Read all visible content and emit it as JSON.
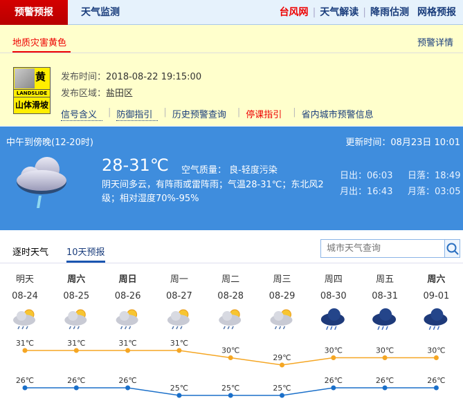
{
  "nav": {
    "active": "预警预报",
    "tab2": "天气监测",
    "right": [
      "台风网",
      "天气解读",
      "降雨估测",
      "网格预报"
    ]
  },
  "warning": {
    "title": "地质灾害黄色",
    "detail": "预警详情",
    "badge": {
      "level": "黄",
      "en": "LANDSLIDE",
      "cn": "山体滑坡"
    },
    "time_label": "发布时间：",
    "time": "2018-08-22 19:15:00",
    "area_label": "发布区域：",
    "area": "盐田区",
    "links": [
      "信号含义",
      "防御指引",
      "历史预警查询",
      "停课指引",
      "省内城市预警信息"
    ]
  },
  "current": {
    "period": "中午到傍晚(12-20时)",
    "update": "更新时间：08月23日 10:01",
    "temp": "28-31℃",
    "aq": "空气质量： 良-轻度污染",
    "desc": "阴天间多云，有阵雨或雷阵雨；气温28-31℃；东北风2级；相对湿度70%-95%",
    "sunrise": "日出：06:03",
    "sunset": "日落：18:49",
    "moonrise": "月出：16:43",
    "moonset": "月落：03:05",
    "icon": "cloud-rain-icon"
  },
  "tabs": [
    "逐时天气",
    "10天预报"
  ],
  "search": {
    "placeholder": "城市天气查询"
  },
  "forecast": {
    "colors": {
      "high": "#f5a623",
      "low": "#1a6fc9"
    },
    "days": [
      {
        "w": "明天",
        "d": "08-24",
        "hi": 31,
        "lo": 26,
        "icon": "sun-cloud-rain",
        "bold": false
      },
      {
        "w": "周六",
        "d": "08-25",
        "hi": 31,
        "lo": 26,
        "icon": "sun-cloud-rain",
        "bold": true
      },
      {
        "w": "周日",
        "d": "08-26",
        "hi": 31,
        "lo": 26,
        "icon": "sun-cloud-rain",
        "bold": true
      },
      {
        "w": "周一",
        "d": "08-27",
        "hi": 31,
        "lo": 25,
        "icon": "sun-cloud-rain",
        "bold": false
      },
      {
        "w": "周二",
        "d": "08-28",
        "hi": 30,
        "lo": 25,
        "icon": "sun-cloud-rain",
        "bold": false
      },
      {
        "w": "周三",
        "d": "08-29",
        "hi": 29,
        "lo": 25,
        "icon": "sun-cloud-rain",
        "bold": false
      },
      {
        "w": "周四",
        "d": "08-30",
        "hi": 30,
        "lo": 26,
        "icon": "thunder-rain",
        "bold": false
      },
      {
        "w": "周五",
        "d": "08-31",
        "hi": 30,
        "lo": 26,
        "icon": "thunder-rain",
        "bold": false
      },
      {
        "w": "周六",
        "d": "09-01",
        "hi": 30,
        "lo": 26,
        "icon": "thunder-rain",
        "bold": true
      }
    ]
  }
}
